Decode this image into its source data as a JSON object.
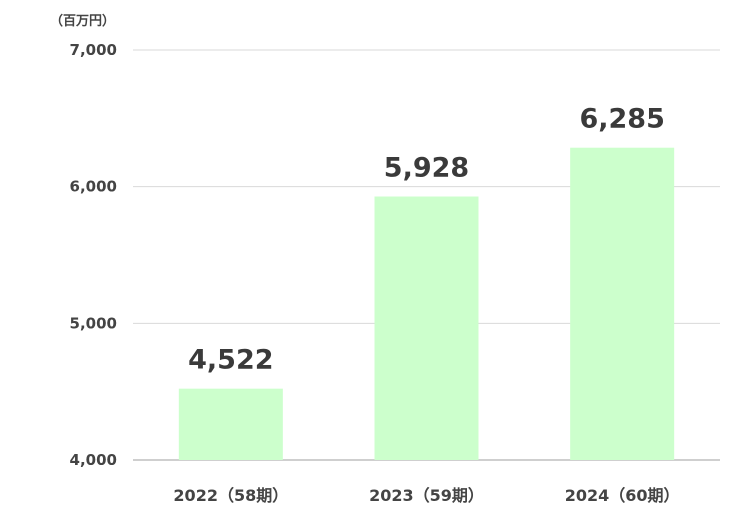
{
  "unit_label": "（百万円）",
  "chart_data": {
    "type": "bar",
    "categories": [
      "2022（58期）",
      "2023（59期）",
      "2024（60期）"
    ],
    "values": [
      4522,
      5928,
      6285
    ],
    "data_labels": [
      "4,522",
      "5,928",
      "6,285"
    ],
    "ylim": [
      4000,
      7000
    ],
    "yticks": [
      4000,
      5000,
      6000,
      7000
    ],
    "ytick_labels": [
      "4,000",
      "5,000",
      "6,000",
      "7,000"
    ],
    "grid": true,
    "bar_color": "#ccffcc",
    "grid_color": "#d9d9d9",
    "axis_color": "#bfbfbf"
  }
}
